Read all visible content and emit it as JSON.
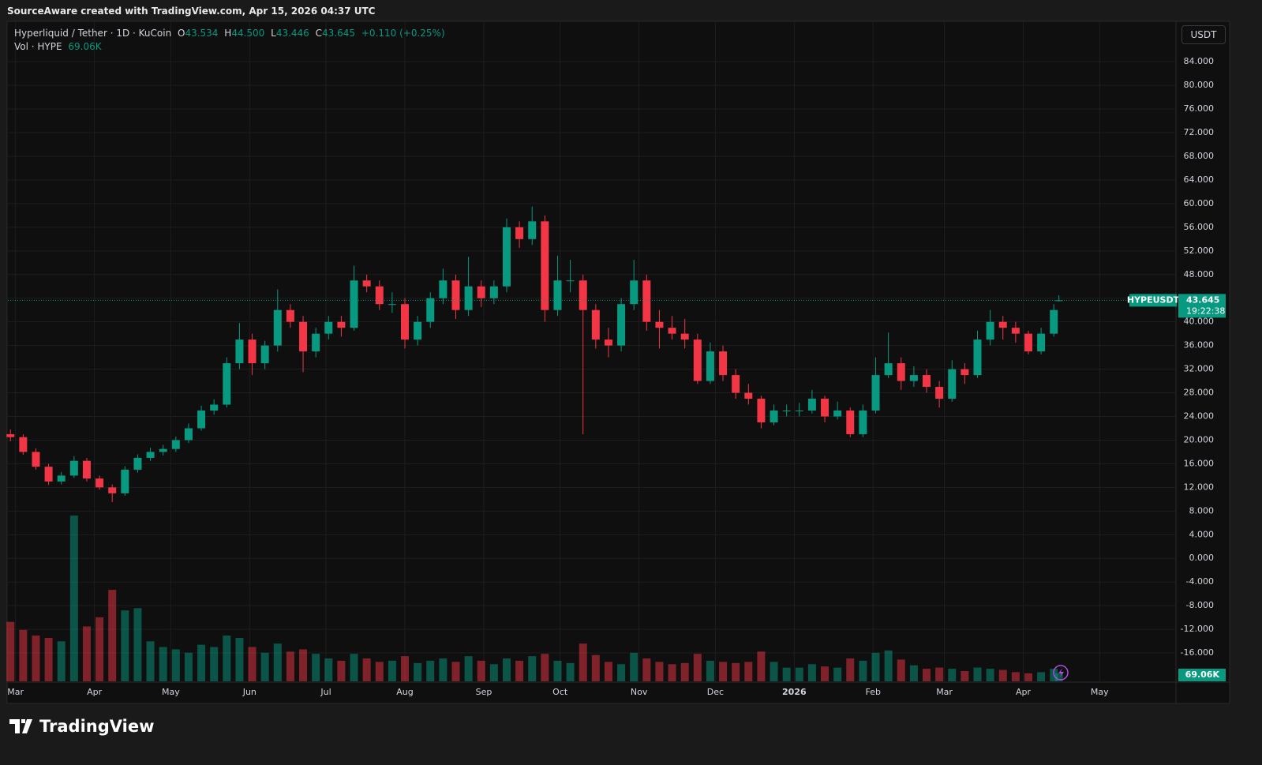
{
  "header": "SourceAware created with TradingView.com, Apr 15, 2026 04:37 UTC",
  "footer": {
    "logo": "TradingView"
  },
  "chart_data": {
    "type": "candlestick",
    "symbol": "Hyperliquid / Tether · 1D · KuCoin",
    "legend": {
      "o_label": "O",
      "o": "43.534",
      "h_label": "H",
      "h": "44.500",
      "l_label": "L",
      "l": "43.446",
      "c_label": "C",
      "c": "43.645",
      "change": "+0.110 (+0.25%)"
    },
    "volume_legend": "Vol · HYPE",
    "volume_last_label": "69.06K",
    "currency": "USDT",
    "ticker": "HYPEUSDT",
    "last_price": "43.645",
    "countdown": "19:22:38",
    "up_color": "#089981",
    "down_color": "#f23645",
    "grid": true,
    "x": [
      -2,
      3,
      8,
      13,
      18,
      23,
      28,
      33,
      38,
      43,
      48,
      53,
      58,
      63,
      68,
      73,
      78,
      83,
      88,
      93,
      98,
      103,
      108,
      113,
      118,
      123,
      128,
      133,
      138,
      143,
      148,
      153,
      158,
      163,
      168,
      173,
      178,
      183,
      188,
      193,
      198,
      203,
      208,
      213,
      218,
      223,
      228,
      233,
      238,
      243,
      248,
      253,
      258,
      263,
      268,
      273,
      278,
      283,
      288,
      293,
      298,
      303,
      308,
      313,
      318,
      323,
      328,
      333,
      338,
      343,
      348,
      353,
      358,
      363,
      368,
      373,
      378,
      383,
      388,
      393,
      398,
      403,
      408,
      410
    ],
    "open": [
      21,
      20.5,
      18,
      15.5,
      13,
      14,
      16.5,
      13.5,
      12,
      11,
      15,
      17,
      18,
      18.5,
      20,
      22,
      25,
      26,
      33,
      37,
      33,
      36,
      42,
      40,
      35,
      38,
      40,
      39,
      47,
      46,
      43,
      43,
      37,
      40,
      44,
      47,
      42,
      46,
      44,
      46,
      56,
      54,
      57,
      42,
      47,
      47,
      42,
      37,
      36,
      43,
      47,
      40,
      39,
      38,
      37,
      30,
      35,
      31,
      28,
      27,
      23,
      25,
      25,
      25,
      27,
      24,
      25,
      21,
      25,
      31,
      33,
      30,
      31,
      29,
      27,
      32,
      31,
      37,
      40,
      39,
      38,
      35,
      38,
      43.534
    ],
    "high": [
      21.8,
      21,
      18.6,
      16,
      14.6,
      17.3,
      17,
      14,
      12.5,
      15.6,
      17.6,
      18.7,
      19.2,
      20.6,
      22.8,
      25.8,
      26.9,
      34,
      39.8,
      38,
      36.8,
      45.5,
      43,
      41,
      39,
      41,
      41,
      49.5,
      48,
      47,
      45,
      44,
      41,
      45,
      49,
      48,
      51,
      47,
      47,
      57.5,
      57,
      59.5,
      58,
      51.2,
      50.5,
      48,
      43,
      39,
      44,
      50.5,
      48,
      42,
      41,
      40.5,
      38,
      36.5,
      36,
      32,
      29.5,
      27.5,
      26,
      26,
      26.3,
      28.5,
      27.5,
      26.5,
      25.5,
      26,
      34,
      38.2,
      34,
      32.5,
      32,
      30,
      33.5,
      33,
      38.5,
      42,
      41,
      40,
      38.5,
      39,
      43,
      44.5
    ],
    "low": [
      19.8,
      17.5,
      15,
      12.4,
      12.5,
      13.6,
      13,
      11.6,
      9.5,
      10.6,
      14.5,
      16.5,
      17.4,
      18,
      19.5,
      21.6,
      24.3,
      25.5,
      32,
      31,
      32,
      35,
      39,
      31.5,
      34,
      37,
      37.5,
      38.5,
      45,
      42,
      41.5,
      35.5,
      36,
      39,
      43,
      40.5,
      41,
      42.5,
      43,
      45,
      52.5,
      53,
      40,
      41,
      45,
      21,
      35.5,
      34,
      35,
      42,
      38.5,
      35.5,
      37,
      35.5,
      29.5,
      29.5,
      30,
      27,
      26,
      22,
      22.5,
      24,
      24,
      24.5,
      23,
      23.5,
      20.5,
      20.5,
      24.5,
      30.5,
      28.5,
      29,
      28,
      25.5,
      26.5,
      29.5,
      30.5,
      36,
      37,
      36.5,
      34.5,
      34.5,
      37.5,
      43.446
    ],
    "close": [
      20.5,
      18,
      15.5,
      13,
      14,
      16.5,
      13.5,
      12,
      11,
      15,
      17,
      18,
      18.5,
      20,
      22,
      25,
      26,
      33,
      37,
      33,
      36,
      42,
      40,
      35,
      38,
      40,
      39,
      47,
      46,
      43,
      43,
      37,
      40,
      44,
      47,
      42,
      46,
      44,
      46,
      56,
      54,
      57,
      42,
      47,
      47,
      42,
      37,
      36,
      43,
      47,
      40,
      39,
      38,
      37,
      30,
      35,
      31,
      28,
      27,
      23,
      25,
      25,
      25,
      27,
      24,
      25,
      21,
      25,
      31,
      33,
      30,
      31,
      29,
      27,
      32,
      31,
      37,
      40,
      39,
      38,
      35,
      38,
      42,
      43.645
    ],
    "volume": [
      520000,
      450000,
      400000,
      380000,
      350000,
      1450000,
      480000,
      560000,
      800000,
      620000,
      640000,
      350000,
      300000,
      280000,
      250000,
      320000,
      300000,
      400000,
      380000,
      300000,
      250000,
      330000,
      260000,
      280000,
      240000,
      200000,
      180000,
      240000,
      200000,
      170000,
      180000,
      220000,
      160000,
      180000,
      200000,
      170000,
      220000,
      180000,
      150000,
      200000,
      180000,
      220000,
      240000,
      180000,
      160000,
      330000,
      230000,
      170000,
      150000,
      250000,
      200000,
      170000,
      150000,
      160000,
      240000,
      180000,
      170000,
      160000,
      170000,
      260000,
      170000,
      120000,
      120000,
      150000,
      130000,
      120000,
      200000,
      180000,
      250000,
      270000,
      190000,
      140000,
      110000,
      120000,
      110000,
      90000,
      120000,
      110000,
      100000,
      80000,
      70000,
      80000,
      110000,
      69060
    ],
    "xlim": [
      -3,
      456
    ],
    "xticks": [
      {
        "value": 0,
        "label": "Mar"
      },
      {
        "value": 31,
        "label": "Apr"
      },
      {
        "value": 61,
        "label": "May"
      },
      {
        "value": 92,
        "label": "Jun"
      },
      {
        "value": 122,
        "label": "Jul"
      },
      {
        "value": 153,
        "label": "Aug"
      },
      {
        "value": 184,
        "label": "Sep"
      },
      {
        "value": 214,
        "label": "Oct"
      },
      {
        "value": 245,
        "label": "Nov"
      },
      {
        "value": 275,
        "label": "Dec"
      },
      {
        "value": 306,
        "label": "2026"
      },
      {
        "value": 337,
        "label": "Feb"
      },
      {
        "value": 365,
        "label": "Mar"
      },
      {
        "value": 396,
        "label": "Apr"
      },
      {
        "value": 426,
        "label": "May"
      }
    ],
    "ylim": [
      -20.8,
      90.7
    ],
    "yticks": [
      {
        "value": 84,
        "label": "84.000"
      },
      {
        "value": 80,
        "label": "80.000"
      },
      {
        "value": 76,
        "label": "76.000"
      },
      {
        "value": 72,
        "label": "72.000"
      },
      {
        "value": 68,
        "label": "68.000"
      },
      {
        "value": 64,
        "label": "64.000"
      },
      {
        "value": 60,
        "label": "60.000"
      },
      {
        "value": 56,
        "label": "56.000"
      },
      {
        "value": 52,
        "label": "52.000"
      },
      {
        "value": 48,
        "label": "48.000"
      },
      {
        "value": 44,
        "label": "44.000"
      },
      {
        "value": 40,
        "label": "40.000"
      },
      {
        "value": 36,
        "label": "36.000"
      },
      {
        "value": 32,
        "label": "32.000"
      },
      {
        "value": 28,
        "label": "28.000"
      },
      {
        "value": 24,
        "label": "24.000"
      },
      {
        "value": 20,
        "label": "20.000"
      },
      {
        "value": 16,
        "label": "16.000"
      },
      {
        "value": 12,
        "label": "12.000"
      },
      {
        "value": 8,
        "label": "8.000"
      },
      {
        "value": 4,
        "label": "4.000"
      },
      {
        "value": 0,
        "label": "0.000"
      },
      {
        "value": -4,
        "label": "-4.000"
      },
      {
        "value": -8,
        "label": "-8.000"
      },
      {
        "value": -12,
        "label": "-12.000"
      },
      {
        "value": -16,
        "label": "-16.000"
      }
    ]
  }
}
